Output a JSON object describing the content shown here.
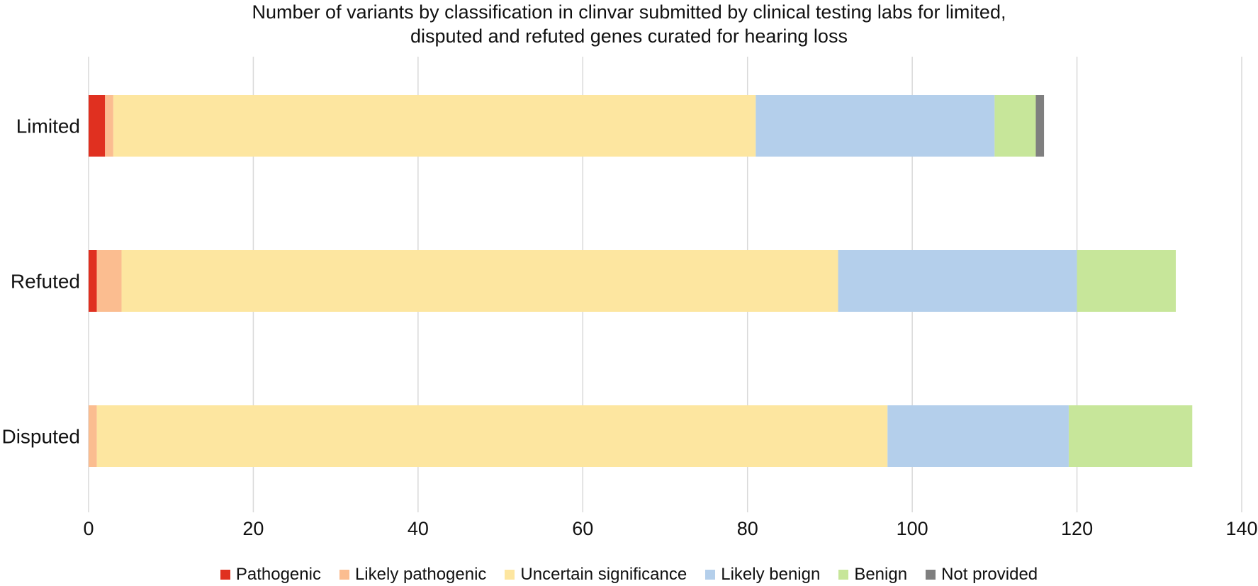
{
  "chart_data": {
    "type": "bar",
    "orientation": "horizontal",
    "stacked": true,
    "title_lines": [
      "Number of variants by classification in clinvar submitted by clinical testing labs for limited,",
      "disputed and refuted genes  curated for hearing loss"
    ],
    "categories": [
      "Limited",
      "Refuted",
      "Disputed"
    ],
    "series": [
      {
        "name": "Pathogenic",
        "color": "#e03020",
        "values": [
          2,
          1,
          0
        ]
      },
      {
        "name": "Likely pathogenic",
        "color": "#fbbd90",
        "values": [
          1,
          3,
          1
        ]
      },
      {
        "name": "Uncertain significance",
        "color": "#fde6a0",
        "values": [
          78,
          87,
          96
        ]
      },
      {
        "name": "Likely benign",
        "color": "#b4cfeb",
        "values": [
          29,
          29,
          22
        ]
      },
      {
        "name": "Benign",
        "color": "#c7e69a",
        "values": [
          5,
          12,
          15
        ]
      },
      {
        "name": "Not provided",
        "color": "#7f7f7f",
        "values": [
          1,
          0,
          0
        ]
      }
    ],
    "xlim": [
      0,
      140
    ],
    "xticks": [
      "0",
      "20",
      "40",
      "60",
      "80",
      "100",
      "120",
      "140"
    ],
    "grid": true,
    "legend_position": "bottom"
  }
}
